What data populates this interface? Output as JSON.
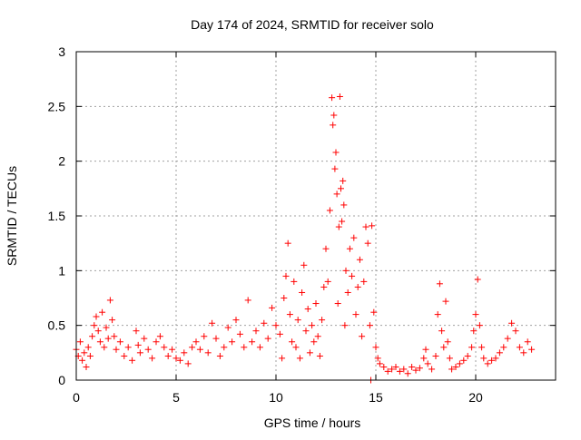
{
  "chart_data": {
    "type": "scatter",
    "title": "Day 174 of 2024, SRMTID for receiver solo",
    "xlabel": "GPS time / hours",
    "ylabel": "SRMTID / TECUs",
    "xlim": [
      0,
      24
    ],
    "ylim": [
      0,
      3
    ],
    "x_ticks": [
      {
        "value": 0,
        "label": "0"
      },
      {
        "value": 5,
        "label": "5"
      },
      {
        "value": 10,
        "label": "10"
      },
      {
        "value": 15,
        "label": "15"
      },
      {
        "value": 20,
        "label": "20"
      }
    ],
    "y_ticks": [
      {
        "value": 0,
        "label": "0"
      },
      {
        "value": 0.5,
        "label": "0.5"
      },
      {
        "value": 1,
        "label": "1"
      },
      {
        "value": 1.5,
        "label": "1.5"
      },
      {
        "value": 2,
        "label": "2"
      },
      {
        "value": 2.5,
        "label": "2.5"
      },
      {
        "value": 3,
        "label": "3"
      }
    ],
    "grid": true,
    "marker": "+",
    "color": "#ff0000",
    "series": [
      {
        "name": "SRMTID",
        "points": [
          [
            0.0,
            0.28
          ],
          [
            0.1,
            0.22
          ],
          [
            0.2,
            0.35
          ],
          [
            0.3,
            0.18
          ],
          [
            0.4,
            0.25
          ],
          [
            0.5,
            0.12
          ],
          [
            0.6,
            0.3
          ],
          [
            0.7,
            0.22
          ],
          [
            0.8,
            0.4
          ],
          [
            0.9,
            0.5
          ],
          [
            1.0,
            0.58
          ],
          [
            1.1,
            0.45
          ],
          [
            1.2,
            0.35
          ],
          [
            1.3,
            0.62
          ],
          [
            1.4,
            0.3
          ],
          [
            1.5,
            0.48
          ],
          [
            1.6,
            0.38
          ],
          [
            1.7,
            0.73
          ],
          [
            1.8,
            0.55
          ],
          [
            1.9,
            0.4
          ],
          [
            2.0,
            0.28
          ],
          [
            2.2,
            0.35
          ],
          [
            2.4,
            0.22
          ],
          [
            2.6,
            0.3
          ],
          [
            2.8,
            0.18
          ],
          [
            3.0,
            0.45
          ],
          [
            3.1,
            0.32
          ],
          [
            3.2,
            0.25
          ],
          [
            3.4,
            0.38
          ],
          [
            3.6,
            0.28
          ],
          [
            3.8,
            0.2
          ],
          [
            4.0,
            0.35
          ],
          [
            4.2,
            0.4
          ],
          [
            4.4,
            0.3
          ],
          [
            4.6,
            0.22
          ],
          [
            4.8,
            0.28
          ],
          [
            5.0,
            0.2
          ],
          [
            5.2,
            0.18
          ],
          [
            5.4,
            0.25
          ],
          [
            5.6,
            0.15
          ],
          [
            5.8,
            0.3
          ],
          [
            6.0,
            0.35
          ],
          [
            6.2,
            0.28
          ],
          [
            6.4,
            0.4
          ],
          [
            6.6,
            0.25
          ],
          [
            6.8,
            0.52
          ],
          [
            7.0,
            0.38
          ],
          [
            7.2,
            0.22
          ],
          [
            7.4,
            0.3
          ],
          [
            7.6,
            0.48
          ],
          [
            7.8,
            0.35
          ],
          [
            8.0,
            0.55
          ],
          [
            8.2,
            0.42
          ],
          [
            8.4,
            0.3
          ],
          [
            8.6,
            0.73
          ],
          [
            8.8,
            0.35
          ],
          [
            9.0,
            0.45
          ],
          [
            9.2,
            0.3
          ],
          [
            9.4,
            0.52
          ],
          [
            9.6,
            0.38
          ],
          [
            9.8,
            0.66
          ],
          [
            10.0,
            0.5
          ],
          [
            10.2,
            0.42
          ],
          [
            10.3,
            0.2
          ],
          [
            10.4,
            0.75
          ],
          [
            10.5,
            0.95
          ],
          [
            10.6,
            1.25
          ],
          [
            10.7,
            0.6
          ],
          [
            10.8,
            0.35
          ],
          [
            10.9,
            0.9
          ],
          [
            11.0,
            0.3
          ],
          [
            11.1,
            0.55
          ],
          [
            11.2,
            0.2
          ],
          [
            11.3,
            0.8
          ],
          [
            11.4,
            1.05
          ],
          [
            11.5,
            0.45
          ],
          [
            11.6,
            0.65
          ],
          [
            11.7,
            0.25
          ],
          [
            11.8,
            0.5
          ],
          [
            11.9,
            0.35
          ],
          [
            12.0,
            0.7
          ],
          [
            12.1,
            0.4
          ],
          [
            12.2,
            0.22
          ],
          [
            12.3,
            0.55
          ],
          [
            12.4,
            0.85
          ],
          [
            12.5,
            1.2
          ],
          [
            12.6,
            0.9
          ],
          [
            12.7,
            1.55
          ],
          [
            12.8,
            2.58
          ],
          [
            12.85,
            2.33
          ],
          [
            12.9,
            2.42
          ],
          [
            12.95,
            1.93
          ],
          [
            13.0,
            2.08
          ],
          [
            13.05,
            1.7
          ],
          [
            13.1,
            0.7
          ],
          [
            13.15,
            1.4
          ],
          [
            13.2,
            2.59
          ],
          [
            13.25,
            1.75
          ],
          [
            13.3,
            1.45
          ],
          [
            13.35,
            1.82
          ],
          [
            13.4,
            1.6
          ],
          [
            13.45,
            0.5
          ],
          [
            13.5,
            1.0
          ],
          [
            13.6,
            0.8
          ],
          [
            13.7,
            1.2
          ],
          [
            13.8,
            0.95
          ],
          [
            13.9,
            1.3
          ],
          [
            14.0,
            0.6
          ],
          [
            14.1,
            0.85
          ],
          [
            14.2,
            1.1
          ],
          [
            14.3,
            0.4
          ],
          [
            14.4,
            0.9
          ],
          [
            14.5,
            1.4
          ],
          [
            14.6,
            1.25
          ],
          [
            14.7,
            0.5
          ],
          [
            14.75,
            0.0
          ],
          [
            14.8,
            1.41
          ],
          [
            14.9,
            0.62
          ],
          [
            15.0,
            0.3
          ],
          [
            15.1,
            0.2
          ],
          [
            15.2,
            0.15
          ],
          [
            15.4,
            0.12
          ],
          [
            15.6,
            0.08
          ],
          [
            15.8,
            0.1
          ],
          [
            16.0,
            0.12
          ],
          [
            16.2,
            0.08
          ],
          [
            16.4,
            0.1
          ],
          [
            16.6,
            0.06
          ],
          [
            16.8,
            0.12
          ],
          [
            17.0,
            0.09
          ],
          [
            17.2,
            0.11
          ],
          [
            17.4,
            0.2
          ],
          [
            17.5,
            0.28
          ],
          [
            17.6,
            0.15
          ],
          [
            17.8,
            0.1
          ],
          [
            18.0,
            0.22
          ],
          [
            18.1,
            0.6
          ],
          [
            18.2,
            0.88
          ],
          [
            18.3,
            0.45
          ],
          [
            18.4,
            0.3
          ],
          [
            18.5,
            0.72
          ],
          [
            18.6,
            0.35
          ],
          [
            18.7,
            0.2
          ],
          [
            18.8,
            0.1
          ],
          [
            19.0,
            0.12
          ],
          [
            19.2,
            0.15
          ],
          [
            19.4,
            0.18
          ],
          [
            19.6,
            0.22
          ],
          [
            19.8,
            0.3
          ],
          [
            19.9,
            0.45
          ],
          [
            20.0,
            0.6
          ],
          [
            20.1,
            0.92
          ],
          [
            20.2,
            0.5
          ],
          [
            20.3,
            0.3
          ],
          [
            20.4,
            0.2
          ],
          [
            20.6,
            0.15
          ],
          [
            20.8,
            0.18
          ],
          [
            21.0,
            0.2
          ],
          [
            21.2,
            0.25
          ],
          [
            21.4,
            0.3
          ],
          [
            21.6,
            0.38
          ],
          [
            21.8,
            0.52
          ],
          [
            22.0,
            0.45
          ],
          [
            22.2,
            0.3
          ],
          [
            22.4,
            0.25
          ],
          [
            22.6,
            0.35
          ],
          [
            22.8,
            0.28
          ]
        ]
      }
    ]
  }
}
